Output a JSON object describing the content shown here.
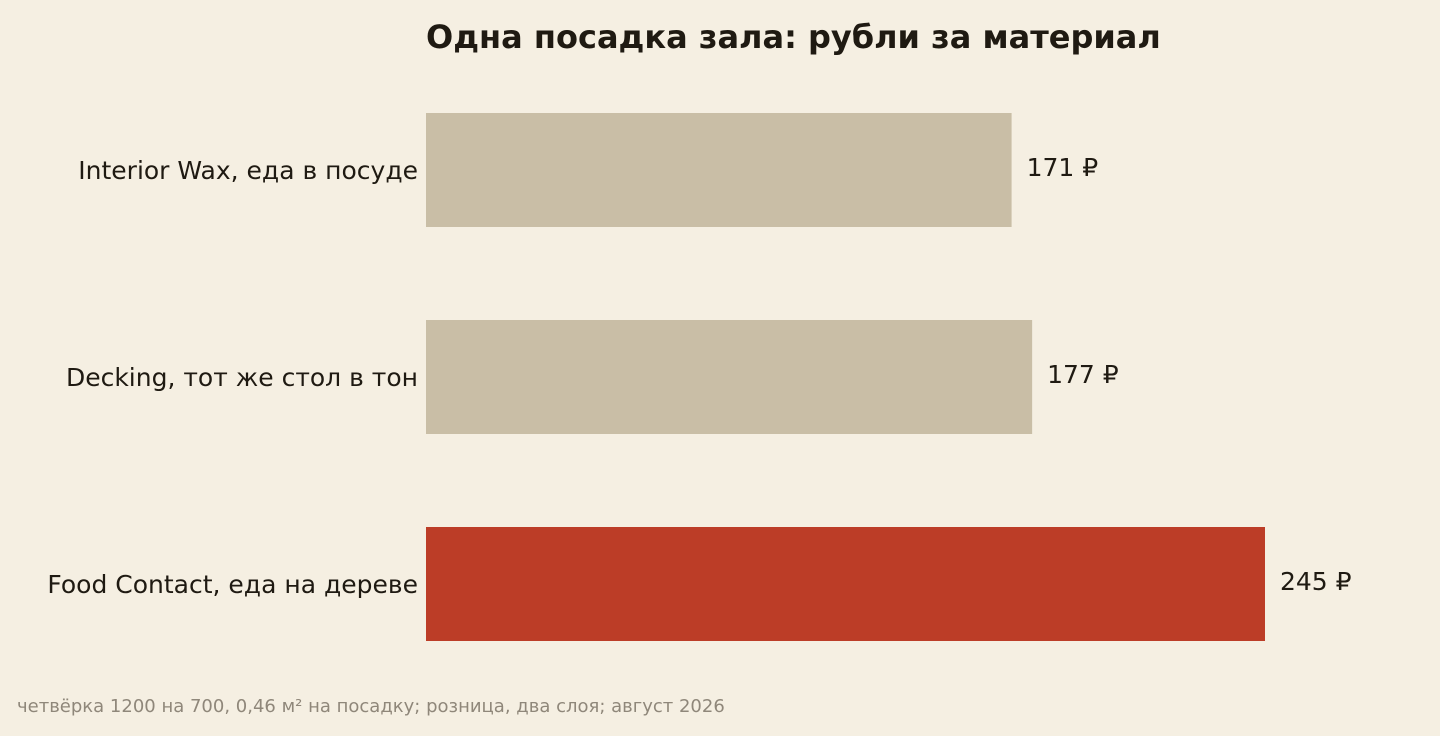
{
  "chart_data": {
    "type": "bar",
    "orientation": "horizontal",
    "title": "Одна посадка зала: рубли за материал",
    "footnote": "четвёрка 1200 на 700, 0,46 м² на посадку; розница, два слоя; август 2026",
    "categories": [
      "Interior Wax, еда в посуде",
      "Decking, тот же стол в тон",
      "Food Contact, еда на дереве"
    ],
    "values": [
      171,
      177,
      245
    ],
    "value_labels": [
      "171 ₽",
      "177 ₽",
      "245 ₽"
    ],
    "xlim": [
      0,
      245
    ],
    "grid": false,
    "legend": "none",
    "colors": {
      "default_bar": "#c9bea6",
      "highlight_bar": "#bc3d27",
      "background": "#f5efe2",
      "text": "#1f1a12",
      "footnote": "#8f877a"
    },
    "highlight_index": 2
  }
}
